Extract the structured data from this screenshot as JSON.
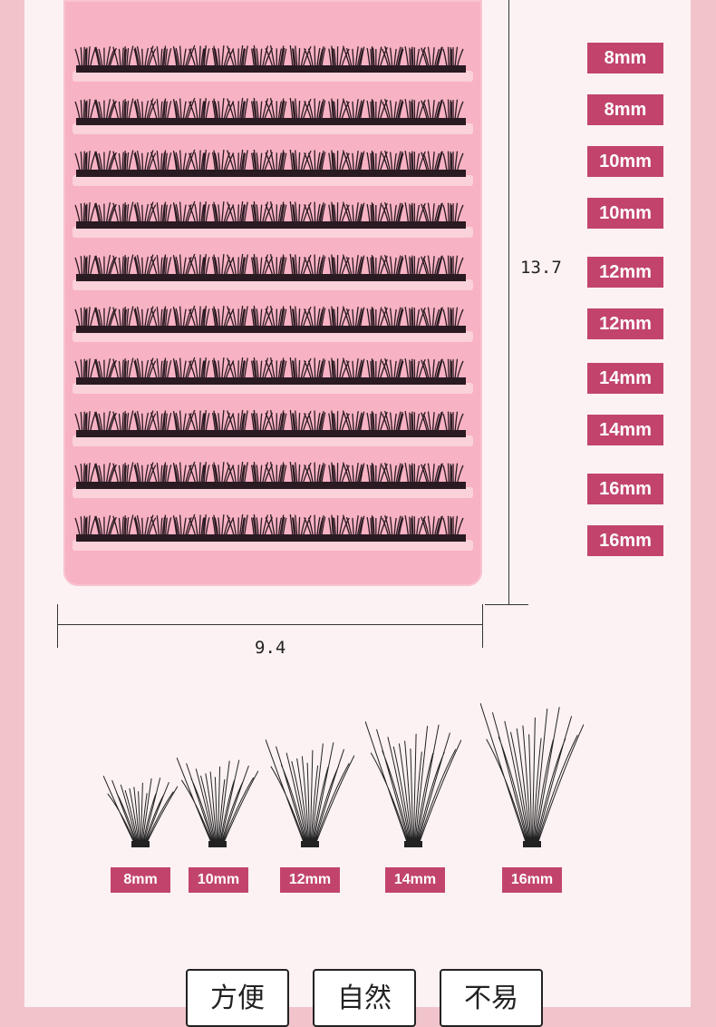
{
  "tray": {
    "rows": [
      "8mm",
      "8mm",
      "10mm",
      "10mm",
      "12mm",
      "12mm",
      "14mm",
      "14mm",
      "16mm",
      "16mm"
    ]
  },
  "dimensions": {
    "height": "13.7",
    "width": "9.4"
  },
  "clusters": [
    {
      "label": "8mm",
      "length_mm": 8
    },
    {
      "label": "10mm",
      "length_mm": 10
    },
    {
      "label": "12mm",
      "length_mm": 12
    },
    {
      "label": "14mm",
      "length_mm": 14
    },
    {
      "label": "16mm",
      "length_mm": 16
    }
  ],
  "features": [
    "方便",
    "自然",
    "不易"
  ],
  "colors": {
    "accent": "#c2446d",
    "tray": "#f7b2c3",
    "background": "#fcf2f3",
    "side": "#f1c4cb"
  }
}
